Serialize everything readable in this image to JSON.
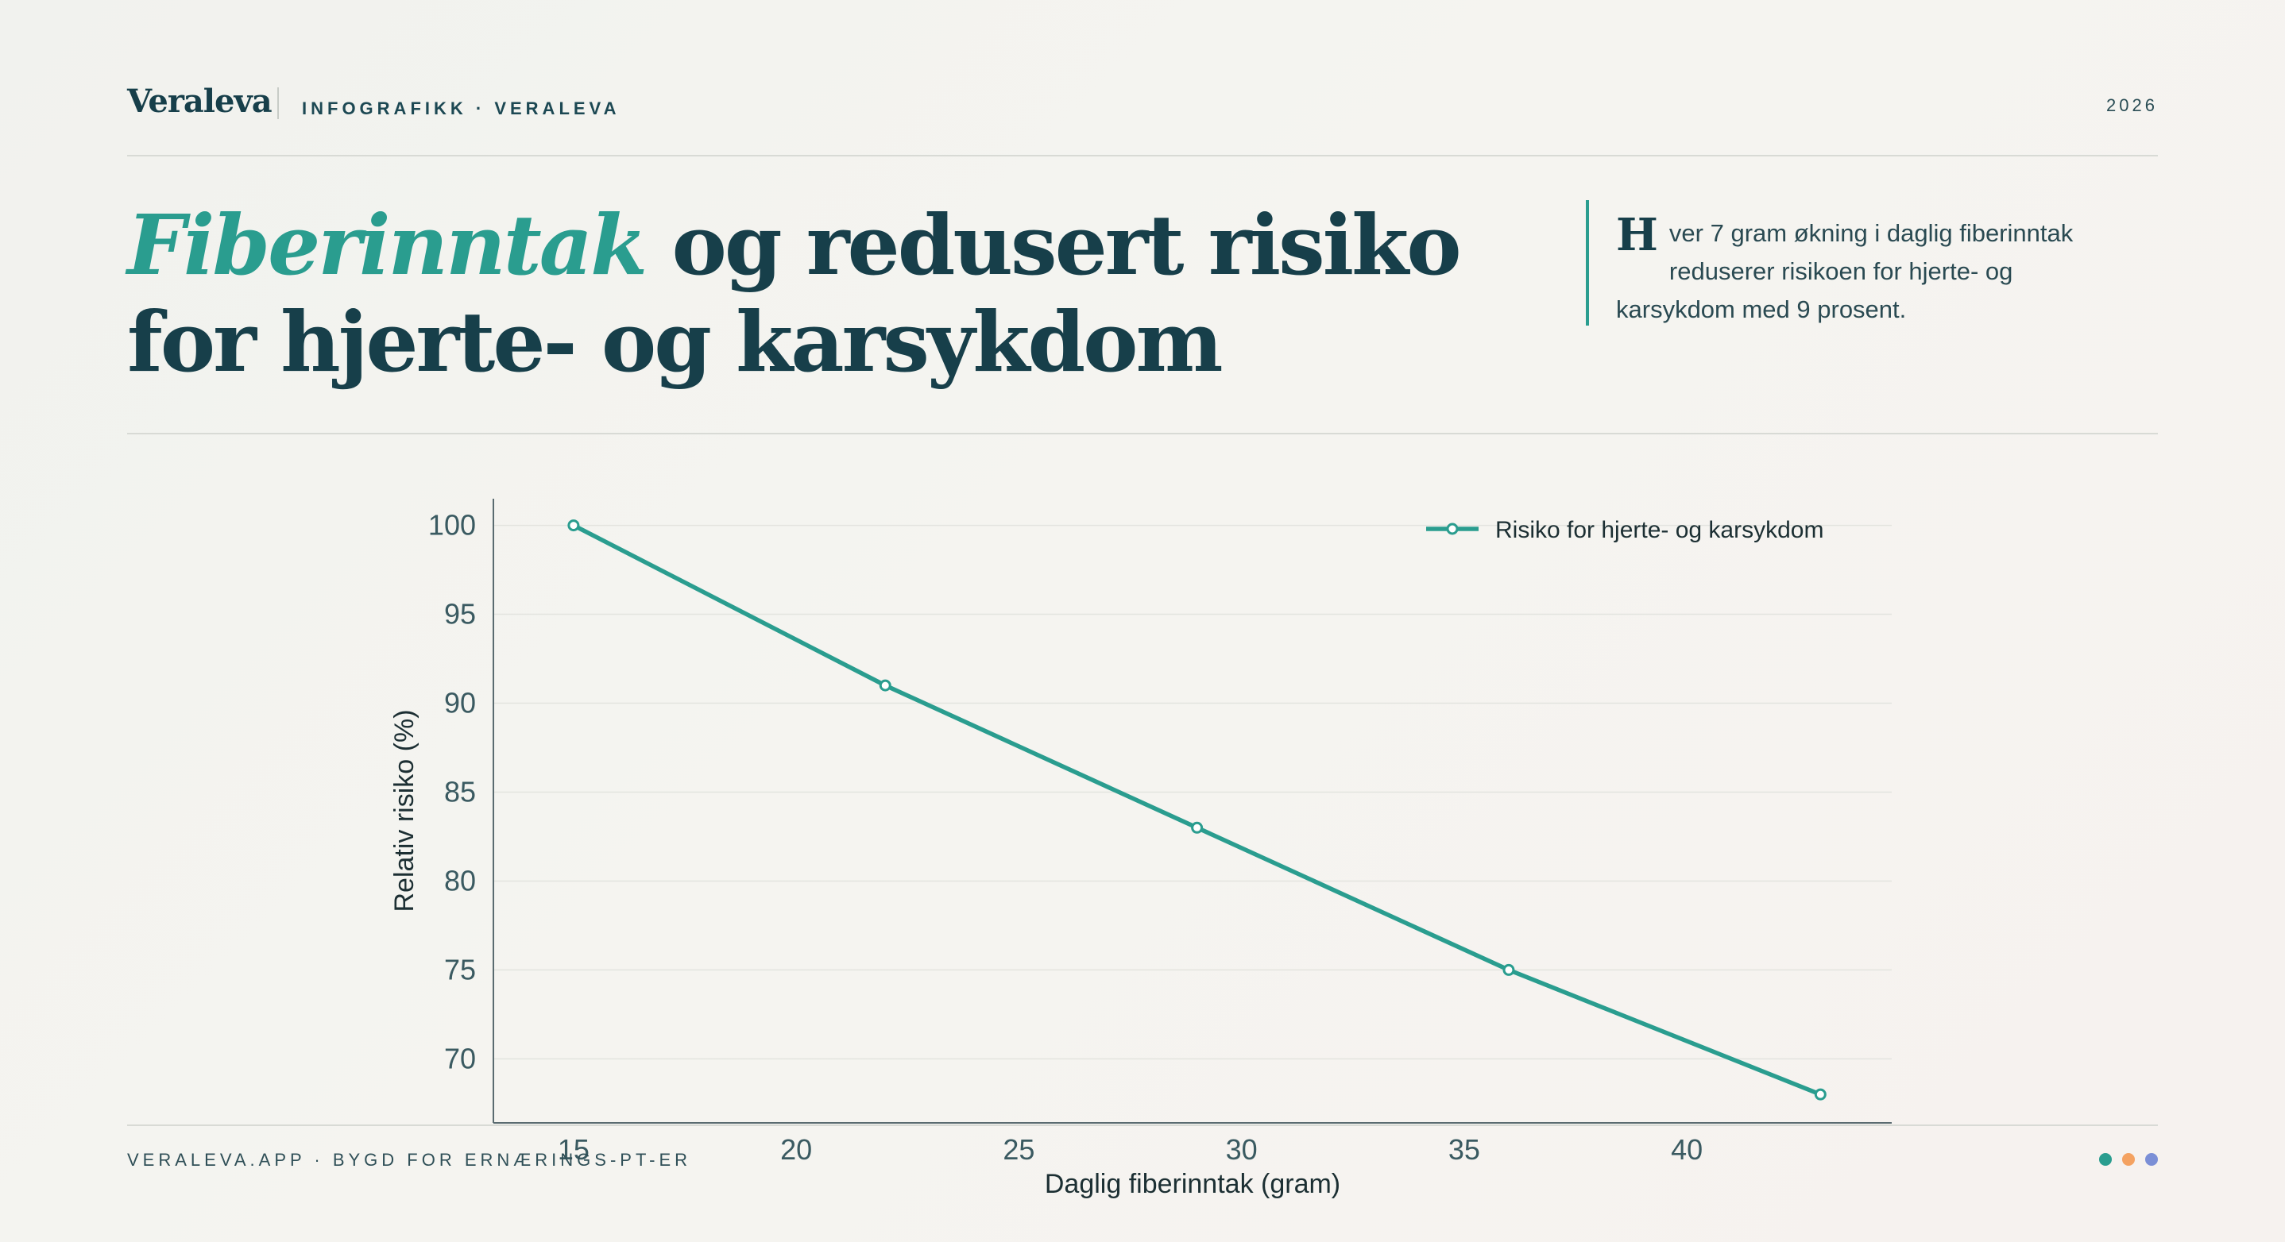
{
  "header": {
    "brand": "Veraleva",
    "kicker": "INFOGRAFIKK · VERALEVA",
    "year": "2026"
  },
  "title": {
    "accent": "Fiberinntak",
    "rest": " og redusert risiko for hjerte- og karsykdom"
  },
  "lede": {
    "drop_cap": "H",
    "text": "ver 7 gram økning i daglig fiberinntak reduserer risikoen for hjerte- og karsykdom med 9 prosent."
  },
  "footer": {
    "left": "VERALEVA.APP · BYGD FOR ERNÆRINGS-PT-ER",
    "dot_colors": [
      "#2a9d8f",
      "#f4a261",
      "#7b8fd6"
    ]
  },
  "colors": {
    "accent": "#2a9d8f",
    "ink": "#173f4a"
  },
  "chart_data": {
    "type": "line",
    "xlabel": "Daglig fiberinntak (gram)",
    "ylabel": "Relativ risiko (%)",
    "xlim": [
      13.2,
      44.6
    ],
    "ylim": [
      66.4,
      101.5
    ],
    "x_ticks": [
      15,
      20,
      25,
      30,
      35,
      40
    ],
    "y_ticks": [
      70,
      75,
      80,
      85,
      90,
      95,
      100
    ],
    "grid": "horizontal",
    "legend_position": "top-right",
    "series": [
      {
        "name": "Risiko for hjerte- og karsykdom",
        "color": "#2a9d8f",
        "x": [
          15,
          22,
          29,
          36,
          43
        ],
        "y": [
          100,
          91,
          83,
          75,
          68
        ]
      }
    ]
  }
}
